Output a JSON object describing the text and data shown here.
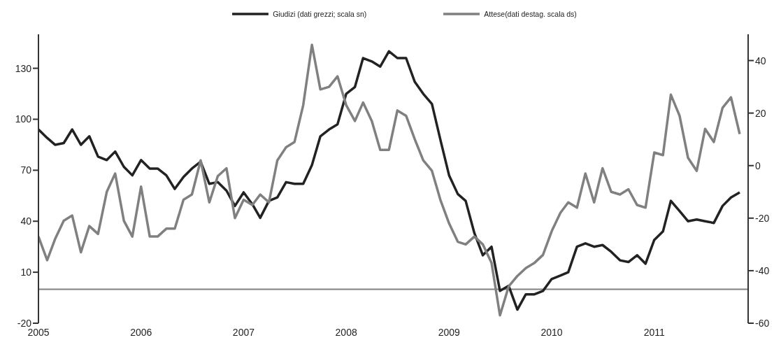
{
  "chart_data": {
    "type": "line",
    "x": [
      "2005-01",
      "2005-02",
      "2005-03",
      "2005-04",
      "2005-05",
      "2005-06",
      "2005-07",
      "2005-08",
      "2005-09",
      "2005-10",
      "2005-11",
      "2005-12",
      "2006-01",
      "2006-02",
      "2006-03",
      "2006-04",
      "2006-05",
      "2006-06",
      "2006-07",
      "2006-08",
      "2006-09",
      "2006-10",
      "2006-11",
      "2006-12",
      "2007-01",
      "2007-02",
      "2007-03",
      "2007-04",
      "2007-05",
      "2007-06",
      "2007-07",
      "2007-08",
      "2007-09",
      "2007-10",
      "2007-11",
      "2007-12",
      "2008-01",
      "2008-02",
      "2008-03",
      "2008-04",
      "2008-05",
      "2008-06",
      "2008-07",
      "2008-08",
      "2008-09",
      "2008-10",
      "2008-11",
      "2008-12",
      "2009-01",
      "2009-02",
      "2009-03",
      "2009-04",
      "2009-05",
      "2009-06",
      "2009-07",
      "2009-08",
      "2009-09",
      "2009-10",
      "2009-11",
      "2009-12",
      "2010-01",
      "2010-02",
      "2010-03",
      "2010-04",
      "2010-05",
      "2010-06",
      "2010-07",
      "2010-08",
      "2010-09",
      "2010-10",
      "2010-11",
      "2010-12",
      "2011-01",
      "2011-02",
      "2011-03",
      "2011-04",
      "2011-05",
      "2011-06",
      "2011-07",
      "2011-08",
      "2011-09",
      "2011-10",
      "2011-11"
    ],
    "series": [
      {
        "name": "Giudizi (dati grezzi; scala sn)",
        "color": "#222222",
        "values": [
          94,
          89,
          85,
          86,
          94,
          85,
          90,
          78,
          76,
          81,
          72,
          67,
          76,
          71,
          71,
          67,
          59,
          66,
          71,
          75,
          62,
          63,
          58,
          49,
          57,
          50,
          42,
          52,
          54,
          63,
          62,
          62,
          73,
          90,
          94,
          97,
          115,
          119,
          136,
          134,
          131,
          140,
          136,
          136,
          122,
          115,
          109,
          88,
          67,
          56,
          52,
          33,
          20,
          25,
          -1,
          2,
          -12,
          -3,
          -3,
          -1,
          6,
          8,
          10,
          25,
          27,
          25,
          26,
          22,
          17,
          16,
          20,
          15,
          29,
          34,
          52,
          46,
          40,
          41,
          40,
          39,
          49,
          54,
          57
        ]
      },
      {
        "name": "Attese(dati destag. scala ds)",
        "color": "#808080",
        "axis": "y2",
        "values": [
          -27,
          -36,
          -28,
          -21,
          -19,
          -33,
          -23,
          -26,
          -10,
          -3,
          -21,
          -27,
          -8,
          -27,
          -27,
          -24,
          -24,
          -13,
          -11,
          2,
          -14,
          -4,
          -1,
          -20,
          -13,
          -15,
          -11,
          -14,
          2,
          7,
          9,
          23,
          46,
          29,
          30,
          34,
          23,
          17,
          24,
          17,
          6,
          6,
          21,
          19,
          10,
          2,
          -2,
          -13,
          -22,
          -29,
          -30,
          -27,
          -30,
          -37,
          -57,
          -46,
          -42,
          -39,
          -37,
          -34,
          -25,
          -18,
          -14,
          -16,
          -3,
          -14,
          -1,
          -10,
          -11,
          -9,
          -15,
          -16,
          5,
          4,
          27,
          19,
          3,
          -2,
          14,
          9,
          22,
          26,
          12
        ]
      }
    ],
    "xlim": [
      "2005-01",
      "2011-12"
    ],
    "xticks": [
      "2005",
      "2006",
      "2007",
      "2008",
      "2009",
      "2010",
      "2011"
    ],
    "ylim": [
      -20,
      150
    ],
    "yticks": [
      -20,
      10,
      40,
      70,
      100,
      130
    ],
    "y2lim": [
      -60,
      50
    ],
    "y2ticks": [
      -60,
      -40,
      -20,
      0,
      20,
      40
    ],
    "ref_lines": [
      {
        "axis": "y",
        "value": 0,
        "color": "#808080"
      }
    ],
    "legend": "top"
  }
}
